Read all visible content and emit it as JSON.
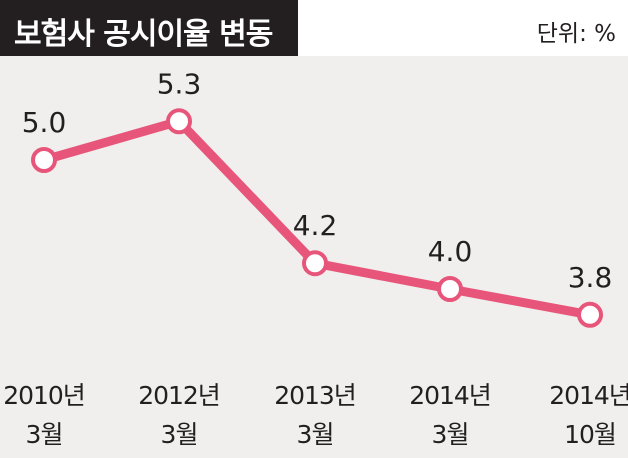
{
  "header": {
    "title": "보험사 공시이율 변동",
    "unit": "단위: %"
  },
  "colors": {
    "line": "#e8557a",
    "marker_fill": "#ffffff",
    "title_bar": "#231f20",
    "background": "#f0efed",
    "text": "#231f20"
  },
  "chart_data": {
    "type": "line",
    "title": "보험사 공시이율 변동",
    "ylabel": "단위: %",
    "grid": false,
    "categories": [
      [
        "2010년",
        "3월"
      ],
      [
        "2012년",
        "3월"
      ],
      [
        "2013년",
        "3월"
      ],
      [
        "2014년",
        "3월"
      ],
      [
        "2014년",
        "10월"
      ]
    ],
    "series": [
      {
        "values": [
          5.0,
          5.3,
          4.2,
          4.0,
          3.8
        ],
        "labels": [
          "5.0",
          "5.3",
          "4.2",
          "4.0",
          "3.8"
        ]
      }
    ]
  }
}
